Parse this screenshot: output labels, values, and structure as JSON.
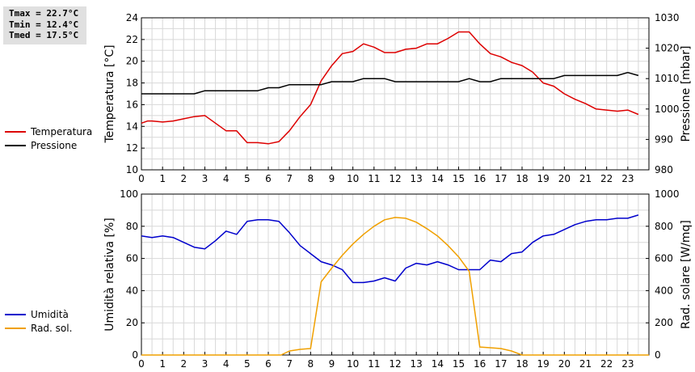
{
  "stats": {
    "tmax": "Tmax = 22.7°C",
    "tmin": "Tmin = 12.4°C",
    "tmed": "Tmed = 17.5°C"
  },
  "chart_data": [
    {
      "type": "line",
      "grid": true,
      "legend_position": "left",
      "xlim": [
        0,
        24
      ],
      "x_ticks": [
        0,
        1,
        2,
        3,
        4,
        5,
        6,
        7,
        8,
        9,
        10,
        11,
        12,
        13,
        14,
        15,
        16,
        17,
        18,
        19,
        20,
        21,
        22,
        23
      ],
      "ylabel_left": "Temperatura [°C]",
      "ylabel_right": "Pressione [mbar]",
      "ylim_left": [
        10,
        24
      ],
      "ylim_right": [
        980,
        1030
      ],
      "y_ticks_left": [
        10,
        12,
        14,
        16,
        18,
        20,
        22,
        24
      ],
      "y_ticks_right": [
        980,
        990,
        1000,
        1010,
        1020,
        1030
      ],
      "series": [
        {
          "name": "Temperatura",
          "axis": "left",
          "color": "#dd0000",
          "x": [
            0,
            0.3,
            0.5,
            1,
            1.5,
            2,
            2.5,
            3,
            3.5,
            4,
            4.5,
            5,
            5.5,
            6,
            6.5,
            7,
            7.5,
            8,
            8.5,
            9,
            9.5,
            10,
            10.5,
            11,
            11.5,
            12,
            12.5,
            13,
            13.5,
            14,
            14.5,
            15,
            15.5,
            16,
            16.5,
            17,
            17.5,
            18,
            18.5,
            19,
            19.5,
            20,
            20.5,
            21,
            21.5,
            22,
            22.5,
            23,
            23.5
          ],
          "y": [
            14.3,
            14.5,
            14.5,
            14.4,
            14.5,
            14.7,
            14.9,
            15.0,
            14.3,
            13.6,
            13.6,
            12.5,
            12.5,
            12.4,
            12.6,
            13.6,
            14.9,
            16.0,
            18.2,
            19.6,
            20.7,
            20.9,
            21.6,
            21.3,
            20.8,
            20.8,
            21.1,
            21.2,
            21.6,
            21.6,
            22.1,
            22.7,
            22.7,
            21.6,
            20.7,
            20.4,
            19.9,
            19.6,
            19.0,
            18.0,
            17.7,
            17.0,
            16.5,
            16.1,
            15.6,
            15.5,
            15.4,
            15.5,
            15.1
          ]
        },
        {
          "name": "Pressione",
          "axis": "right",
          "color": "#000000",
          "x": [
            0,
            0.5,
            1,
            1.5,
            2,
            2.5,
            3,
            3.5,
            4,
            4.5,
            5,
            5.5,
            6,
            6.5,
            7,
            7.5,
            8,
            8.5,
            9,
            9.5,
            10,
            10.5,
            11,
            11.5,
            12,
            12.5,
            13,
            13.5,
            14,
            14.5,
            15,
            15.5,
            16,
            16.5,
            17,
            17.5,
            18,
            18.5,
            19,
            19.5,
            20,
            20.5,
            21,
            21.5,
            22,
            22.5,
            23,
            23.5
          ],
          "y": [
            1005,
            1005,
            1005,
            1005,
            1005,
            1005,
            1006,
            1006,
            1006,
            1006,
            1006,
            1006,
            1007,
            1007,
            1008,
            1008,
            1008,
            1008,
            1009,
            1009,
            1009,
            1010,
            1010,
            1010,
            1009,
            1009,
            1009,
            1009,
            1009,
            1009,
            1009,
            1010,
            1009,
            1009,
            1010,
            1010,
            1010,
            1010,
            1010,
            1010,
            1011,
            1011,
            1011,
            1011,
            1011,
            1011,
            1012,
            1011
          ]
        }
      ]
    },
    {
      "type": "line",
      "grid": true,
      "legend_position": "left",
      "xlim": [
        0,
        24
      ],
      "x_ticks": [
        0,
        1,
        2,
        3,
        4,
        5,
        6,
        7,
        8,
        9,
        10,
        11,
        12,
        13,
        14,
        15,
        16,
        17,
        18,
        19,
        20,
        21,
        22,
        23
      ],
      "ylabel_left": "Umidità relativa [%]",
      "ylabel_right": "Rad. solare [W/mq]",
      "ylim_left": [
        0,
        100
      ],
      "ylim_right": [
        0,
        1000
      ],
      "y_ticks_left": [
        0,
        20,
        40,
        60,
        80,
        100
      ],
      "y_ticks_right": [
        0,
        200,
        400,
        600,
        800,
        1000
      ],
      "series": [
        {
          "name": "Umidità",
          "axis": "left",
          "color": "#0000cc",
          "x": [
            0,
            0.5,
            1,
            1.5,
            2,
            2.5,
            3,
            3.5,
            4,
            4.5,
            5,
            5.5,
            6,
            6.5,
            7,
            7.5,
            8,
            8.5,
            9,
            9.5,
            10,
            10.5,
            11,
            11.5,
            12,
            12.5,
            13,
            13.5,
            14,
            14.5,
            15,
            15.5,
            16,
            16.5,
            17,
            17.5,
            18,
            18.5,
            19,
            19.5,
            20,
            20.5,
            21,
            21.5,
            22,
            22.5,
            23,
            23.5
          ],
          "y": [
            74,
            73,
            74,
            73,
            70,
            67,
            66,
            71,
            77,
            75,
            83,
            84,
            84,
            83,
            76,
            68,
            63,
            58,
            56,
            53,
            45,
            45,
            46,
            48,
            46,
            54,
            57,
            56,
            58,
            56,
            53,
            53,
            53,
            59,
            58,
            63,
            64,
            70,
            74,
            75,
            78,
            81,
            83,
            84,
            84,
            85,
            85,
            87
          ]
        },
        {
          "name": "Rad. sol.",
          "axis": "right",
          "color": "#f0a000",
          "x": [
            0,
            6.6,
            7,
            7.5,
            8,
            8.5,
            9,
            9.5,
            10,
            10.5,
            11,
            11.5,
            12,
            12.5,
            13,
            13.5,
            14,
            14.5,
            15,
            15.5,
            16,
            16.5,
            17,
            17.5,
            18,
            20,
            24
          ],
          "y": [
            0,
            0,
            25,
            35,
            40,
            455,
            540,
            620,
            690,
            750,
            800,
            840,
            855,
            850,
            825,
            785,
            740,
            680,
            610,
            520,
            50,
            45,
            40,
            25,
            0,
            0,
            0
          ]
        }
      ]
    }
  ]
}
